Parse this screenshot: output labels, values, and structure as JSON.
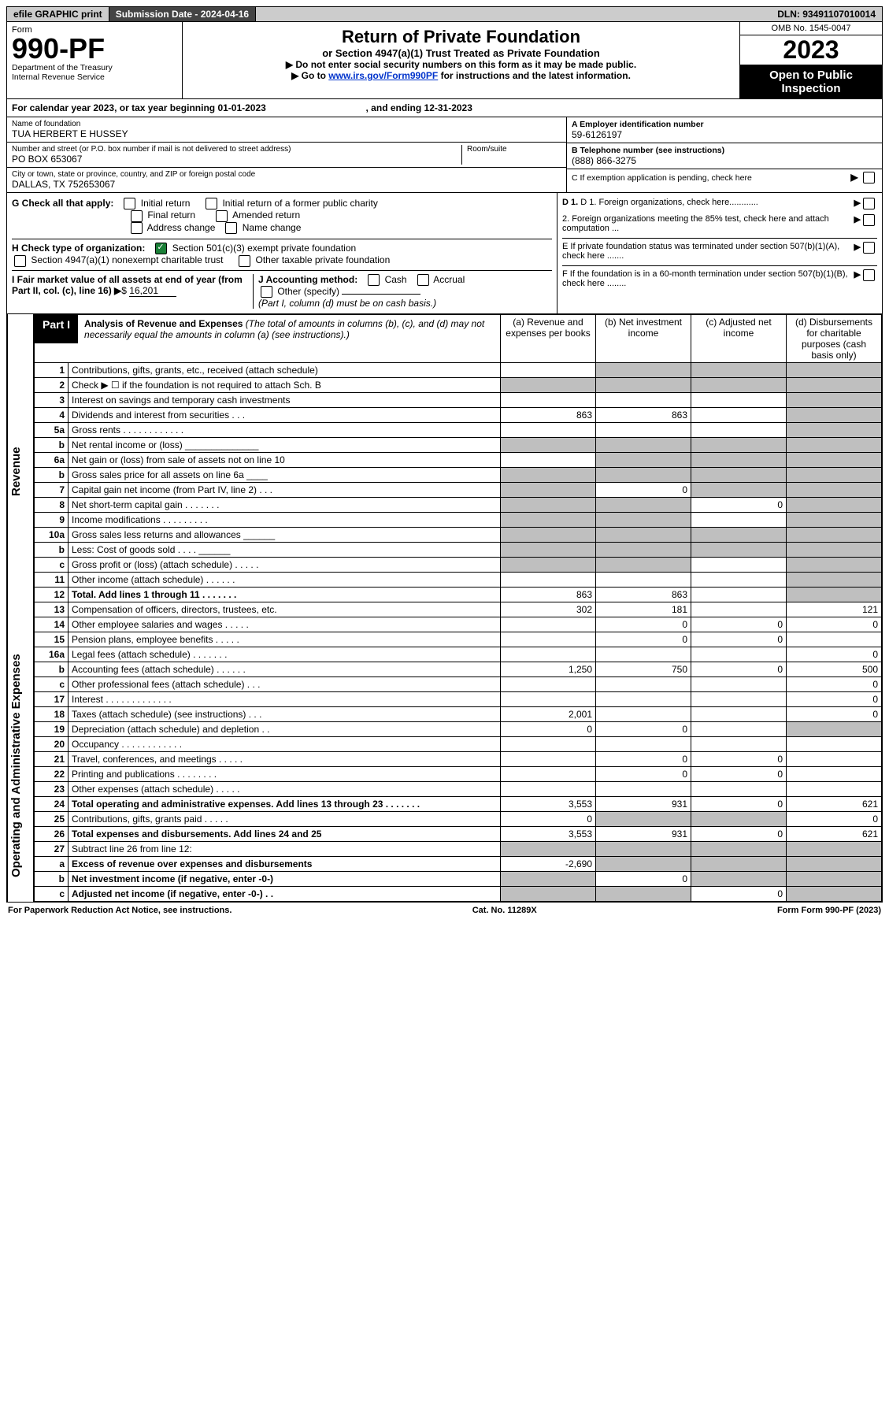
{
  "top": {
    "efile": "efile GRAPHIC print",
    "submission_label": "Submission Date - 2024-04-16",
    "dln": "DLN: 93491107010014"
  },
  "header": {
    "form_label": "Form",
    "form_number": "990-PF",
    "dept": "Department of the Treasury",
    "irs": "Internal Revenue Service",
    "title": "Return of Private Foundation",
    "subtitle": "or Section 4947(a)(1) Trust Treated as Private Foundation",
    "note1": "▶ Do not enter social security numbers on this form as it may be made public.",
    "note2_prefix": "▶ Go to ",
    "note2_link": "www.irs.gov/Form990PF",
    "note2_suffix": " for instructions and the latest information.",
    "omb": "OMB No. 1545-0047",
    "year": "2023",
    "inspection": "Open to Public Inspection"
  },
  "calendar": {
    "text_a": "For calendar year 2023, or tax year beginning 01-01-2023",
    "text_b": ", and ending 12-31-2023"
  },
  "entity": {
    "name_label": "Name of foundation",
    "name": "TUA HERBERT E HUSSEY",
    "addr_label": "Number and street (or P.O. box number if mail is not delivered to street address)",
    "addr": "PO BOX 653067",
    "room_label": "Room/suite",
    "city_label": "City or town, state or province, country, and ZIP or foreign postal code",
    "city": "DALLAS, TX  752653067",
    "a_label": "A Employer identification number",
    "a_val": "59-6126197",
    "b_label": "B Telephone number (see instructions)",
    "b_val": "(888) 866-3275",
    "c_label": "C If exemption application is pending, check here"
  },
  "checks": {
    "g_label": "G Check all that apply:",
    "g_initial": "Initial return",
    "g_initial_former": "Initial return of a former public charity",
    "g_final": "Final return",
    "g_amended": "Amended return",
    "g_addr": "Address change",
    "g_name": "Name change",
    "h_label": "H Check type of organization:",
    "h_501c3": "Section 501(c)(3) exempt private foundation",
    "h_4947": "Section 4947(a)(1) nonexempt charitable trust",
    "h_other": "Other taxable private foundation",
    "i_label": "I Fair market value of all assets at end of year (from Part II, col. (c), line 16)",
    "i_val": "16,201",
    "j_label": "J Accounting method:",
    "j_cash": "Cash",
    "j_accrual": "Accrual",
    "j_other": "Other (specify)",
    "j_note": "(Part I, column (d) must be on cash basis.)",
    "d1": "D 1. Foreign organizations, check here............",
    "d2": "2. Foreign organizations meeting the 85% test, check here and attach computation ...",
    "e": "E  If private foundation status was terminated under section 507(b)(1)(A), check here .......",
    "f": "F  If the foundation is in a 60-month termination under section 507(b)(1)(B), check here ........"
  },
  "part1": {
    "tag": "Part I",
    "title": "Analysis of Revenue and Expenses",
    "title_note": "(The total of amounts in columns (b), (c), and (d) may not necessarily equal the amounts in column (a) (see instructions).)",
    "col_a": "(a)  Revenue and expenses per books",
    "col_b": "(b)  Net investment income",
    "col_c": "(c)  Adjusted net income",
    "col_d": "(d)  Disbursements for charitable purposes (cash basis only)"
  },
  "rows": [
    {
      "n": "1",
      "d": "Contributions, gifts, grants, etc., received (attach schedule)",
      "a": "",
      "b": "grey",
      "c": "grey",
      "dcol": "grey"
    },
    {
      "n": "2",
      "d": "Check ▶ ☐ if the foundation is not required to attach Sch. B",
      "a": "grey",
      "b": "grey",
      "c": "grey",
      "dcol": "grey"
    },
    {
      "n": "3",
      "d": "Interest on savings and temporary cash investments",
      "a": "",
      "b": "",
      "c": "",
      "dcol": "grey"
    },
    {
      "n": "4",
      "d": "Dividends and interest from securities  .  .  .",
      "a": "863",
      "b": "863",
      "c": "",
      "dcol": "grey"
    },
    {
      "n": "5a",
      "d": "Gross rents  .  .  .  .  .  .  .  .  .  .  .  .",
      "a": "",
      "b": "",
      "c": "",
      "dcol": "grey"
    },
    {
      "n": "b",
      "d": "Net rental income or (loss)  ______________",
      "a": "grey",
      "b": "grey",
      "c": "grey",
      "dcol": "grey"
    },
    {
      "n": "6a",
      "d": "Net gain or (loss) from sale of assets not on line 10",
      "a": "",
      "b": "grey",
      "c": "grey",
      "dcol": "grey"
    },
    {
      "n": "b",
      "d": "Gross sales price for all assets on line 6a ____",
      "a": "grey",
      "b": "grey",
      "c": "grey",
      "dcol": "grey"
    },
    {
      "n": "7",
      "d": "Capital gain net income (from Part IV, line 2)  .  .  .",
      "a": "grey",
      "b": "0",
      "c": "grey",
      "dcol": "grey"
    },
    {
      "n": "8",
      "d": "Net short-term capital gain  .  .  .  .  .  .  .",
      "a": "grey",
      "b": "grey",
      "c": "0",
      "dcol": "grey"
    },
    {
      "n": "9",
      "d": "Income modifications  .  .  .  .  .  .  .  .  .",
      "a": "grey",
      "b": "grey",
      "c": "",
      "dcol": "grey"
    },
    {
      "n": "10a",
      "d": "Gross sales less returns and allowances ______",
      "a": "grey",
      "b": "grey",
      "c": "grey",
      "dcol": "grey"
    },
    {
      "n": "b",
      "d": "Less: Cost of goods sold  .  .  .  .  ______",
      "a": "grey",
      "b": "grey",
      "c": "grey",
      "dcol": "grey"
    },
    {
      "n": "c",
      "d": "Gross profit or (loss) (attach schedule)  .  .  .  .  .",
      "a": "grey",
      "b": "grey",
      "c": "",
      "dcol": "grey"
    },
    {
      "n": "11",
      "d": "Other income (attach schedule)  .  .  .  .  .  .",
      "a": "",
      "b": "",
      "c": "",
      "dcol": "grey"
    },
    {
      "n": "12",
      "d": "Total. Add lines 1 through 11  .  .  .  .  .  .  .",
      "a": "863",
      "b": "863",
      "c": "",
      "dcol": "grey",
      "bold": true
    },
    {
      "n": "13",
      "d": "Compensation of officers, directors, trustees, etc.",
      "a": "302",
      "b": "181",
      "c": "",
      "dcol": "121"
    },
    {
      "n": "14",
      "d": "Other employee salaries and wages  .  .  .  .  .",
      "a": "",
      "b": "0",
      "c": "0",
      "dcol": "0"
    },
    {
      "n": "15",
      "d": "Pension plans, employee benefits  .  .  .  .  .",
      "a": "",
      "b": "0",
      "c": "0",
      "dcol": ""
    },
    {
      "n": "16a",
      "d": "Legal fees (attach schedule)  .  .  .  .  .  .  .",
      "a": "",
      "b": "",
      "c": "",
      "dcol": "0"
    },
    {
      "n": "b",
      "d": "Accounting fees (attach schedule)  .  .  .  .  .  .",
      "a": "1,250",
      "b": "750",
      "c": "0",
      "dcol": "500"
    },
    {
      "n": "c",
      "d": "Other professional fees (attach schedule)  .  .  .",
      "a": "",
      "b": "",
      "c": "",
      "dcol": "0"
    },
    {
      "n": "17",
      "d": "Interest  .  .  .  .  .  .  .  .  .  .  .  .  .",
      "a": "",
      "b": "",
      "c": "",
      "dcol": "0"
    },
    {
      "n": "18",
      "d": "Taxes (attach schedule) (see instructions)  .  .  .",
      "a": "2,001",
      "b": "",
      "c": "",
      "dcol": "0"
    },
    {
      "n": "19",
      "d": "Depreciation (attach schedule) and depletion  .  .",
      "a": "0",
      "b": "0",
      "c": "",
      "dcol": "grey"
    },
    {
      "n": "20",
      "d": "Occupancy  .  .  .  .  .  .  .  .  .  .  .  .",
      "a": "",
      "b": "",
      "c": "",
      "dcol": ""
    },
    {
      "n": "21",
      "d": "Travel, conferences, and meetings  .  .  .  .  .",
      "a": "",
      "b": "0",
      "c": "0",
      "dcol": ""
    },
    {
      "n": "22",
      "d": "Printing and publications  .  .  .  .  .  .  .  .",
      "a": "",
      "b": "0",
      "c": "0",
      "dcol": ""
    },
    {
      "n": "23",
      "d": "Other expenses (attach schedule)  .  .  .  .  .",
      "a": "",
      "b": "",
      "c": "",
      "dcol": ""
    },
    {
      "n": "24",
      "d": "Total operating and administrative expenses. Add lines 13 through 23  .  .  .  .  .  .  .",
      "a": "3,553",
      "b": "931",
      "c": "0",
      "dcol": "621",
      "bold": true
    },
    {
      "n": "25",
      "d": "Contributions, gifts, grants paid  .  .  .  .  .",
      "a": "0",
      "b": "grey",
      "c": "grey",
      "dcol": "0"
    },
    {
      "n": "26",
      "d": "Total expenses and disbursements. Add lines 24 and 25",
      "a": "3,553",
      "b": "931",
      "c": "0",
      "dcol": "621",
      "bold": true
    },
    {
      "n": "27",
      "d": "Subtract line 26 from line 12:",
      "a": "grey",
      "b": "grey",
      "c": "grey",
      "dcol": "grey"
    },
    {
      "n": "a",
      "d": "Excess of revenue over expenses and disbursements",
      "a": "-2,690",
      "b": "grey",
      "c": "grey",
      "dcol": "grey",
      "bold": true
    },
    {
      "n": "b",
      "d": "Net investment income (if negative, enter -0-)",
      "a": "grey",
      "b": "0",
      "c": "grey",
      "dcol": "grey",
      "bold": true
    },
    {
      "n": "c",
      "d": "Adjusted net income (if negative, enter -0-)  .  .",
      "a": "grey",
      "b": "grey",
      "c": "0",
      "dcol": "grey",
      "bold": true
    }
  ],
  "side_labels": {
    "revenue": "Revenue",
    "expenses": "Operating and Administrative Expenses"
  },
  "footer": {
    "left": "For Paperwork Reduction Act Notice, see instructions.",
    "center": "Cat. No. 11289X",
    "right": "Form 990-PF (2023)"
  }
}
